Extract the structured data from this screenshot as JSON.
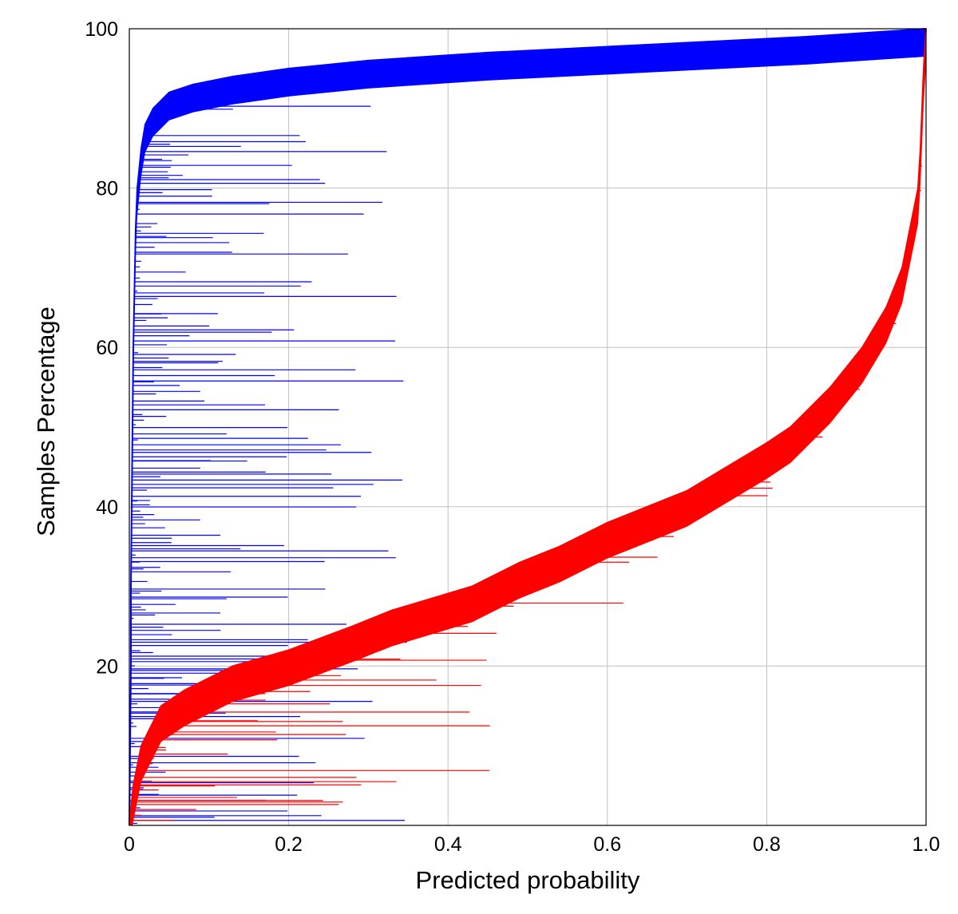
{
  "chart_data": {
    "type": "area",
    "title": "",
    "xlabel": "Predicted probability",
    "ylabel": "Samples Percentage",
    "xlim": [
      0,
      1
    ],
    "ylim": [
      0,
      100
    ],
    "x_ticks": [
      "0",
      "0.2",
      "0.4",
      "0.6",
      "0.8",
      "1.0"
    ],
    "x_tick_values": [
      0,
      0.2,
      0.4,
      0.6,
      0.8,
      1.0
    ],
    "y_ticks": [
      "20",
      "40",
      "60",
      "80",
      "100"
    ],
    "y_tick_values": [
      20,
      40,
      60,
      80,
      100
    ],
    "grid": true,
    "legend": "none",
    "series": [
      {
        "color": "#0000ff",
        "description": "cumulative band (upper edge vs sample percentage)",
        "y": [
          0,
          10,
          20,
          30,
          40,
          50,
          60,
          65,
          70,
          75,
          80,
          85,
          88,
          90,
          92,
          93,
          94,
          95,
          96,
          97,
          98,
          99,
          100
        ],
        "x": [
          0.0,
          0.001,
          0.002,
          0.002,
          0.003,
          0.004,
          0.005,
          0.006,
          0.007,
          0.008,
          0.01,
          0.015,
          0.02,
          0.03,
          0.05,
          0.08,
          0.13,
          0.2,
          0.3,
          0.45,
          0.65,
          0.85,
          1.0
        ]
      },
      {
        "color": "#ff0000",
        "description": "cumulative band (upper edge vs sample percentage)",
        "y": [
          0,
          5,
          10,
          15,
          17,
          20,
          22,
          25,
          27,
          30,
          33,
          35,
          38,
          40,
          42,
          45,
          48,
          50,
          55,
          60,
          65,
          70,
          75,
          80,
          85,
          90,
          95,
          100
        ],
        "x": [
          0.0,
          0.005,
          0.015,
          0.04,
          0.07,
          0.13,
          0.2,
          0.28,
          0.33,
          0.43,
          0.49,
          0.54,
          0.6,
          0.65,
          0.7,
          0.75,
          0.8,
          0.83,
          0.88,
          0.92,
          0.95,
          0.97,
          0.98,
          0.99,
          0.993,
          0.995,
          0.997,
          1.0
        ]
      }
    ]
  }
}
